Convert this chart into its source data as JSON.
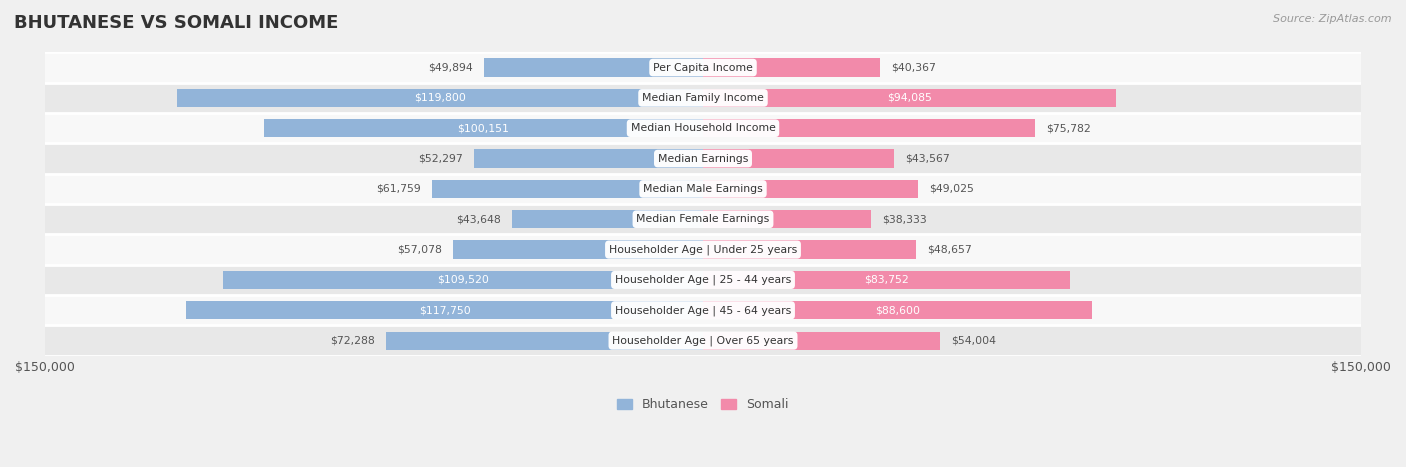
{
  "title": "BHUTANESE VS SOMALI INCOME",
  "source": "Source: ZipAtlas.com",
  "categories": [
    "Per Capita Income",
    "Median Family Income",
    "Median Household Income",
    "Median Earnings",
    "Median Male Earnings",
    "Median Female Earnings",
    "Householder Age | Under 25 years",
    "Householder Age | 25 - 44 years",
    "Householder Age | 45 - 64 years",
    "Householder Age | Over 65 years"
  ],
  "bhutanese": [
    49894,
    119800,
    100151,
    52297,
    61759,
    43648,
    57078,
    109520,
    117750,
    72288
  ],
  "somali": [
    40367,
    94085,
    75782,
    43567,
    49025,
    38333,
    48657,
    83752,
    88600,
    54004
  ],
  "max_val": 150000,
  "bhutanese_color": "#92b4d9",
  "somali_color": "#f28aaa",
  "bhutanese_label_threshold": 80000,
  "somali_label_threshold": 80000,
  "bar_height": 0.6,
  "bg_color": "#f0f0f0",
  "row_bg_light": "#f8f8f8",
  "row_bg_dark": "#e8e8e8",
  "legend_bhutanese": "Bhutanese",
  "legend_somali": "Somali"
}
